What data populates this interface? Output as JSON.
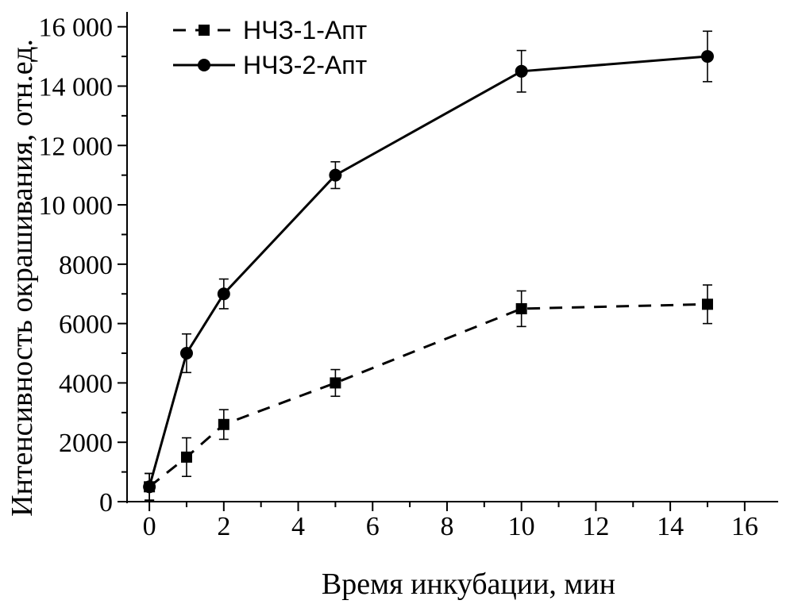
{
  "chart_data": {
    "type": "line",
    "xlabel": "Время инкубации, мин",
    "ylabel": "Интенсивность окрашивания, отн.ед.",
    "xlim": [
      -0.6,
      16.9
    ],
    "ylim": [
      0,
      16500
    ],
    "x_ticks": [
      0,
      2,
      4,
      6,
      8,
      10,
      12,
      14,
      16
    ],
    "x_tick_labels": [
      "0",
      "2",
      "4",
      "6",
      "8",
      "10",
      "12",
      "14",
      "16"
    ],
    "y_ticks": [
      0,
      2000,
      4000,
      6000,
      8000,
      10000,
      12000,
      14000,
      16000
    ],
    "y_tick_labels": [
      "0",
      "2000",
      "4000",
      "6000",
      "8000",
      "10 000",
      "12 000",
      "14 000",
      "16 000"
    ],
    "grid": false,
    "legend_position": "top-left",
    "x": [
      0,
      1,
      2,
      5,
      10,
      15
    ],
    "series": [
      {
        "name": "НЧЗ-1-Апт",
        "line_style": "dashed",
        "marker": "square",
        "color": "#000000",
        "values": [
          500,
          1500,
          2600,
          4000,
          6500,
          6650
        ],
        "errors": [
          450,
          650,
          500,
          450,
          600,
          650
        ]
      },
      {
        "name": "НЧЗ-2-Апт",
        "line_style": "solid",
        "marker": "circle",
        "color": "#000000",
        "values": [
          500,
          5000,
          7000,
          11000,
          14500,
          15000
        ],
        "errors": [
          450,
          650,
          500,
          450,
          700,
          850
        ]
      }
    ]
  }
}
